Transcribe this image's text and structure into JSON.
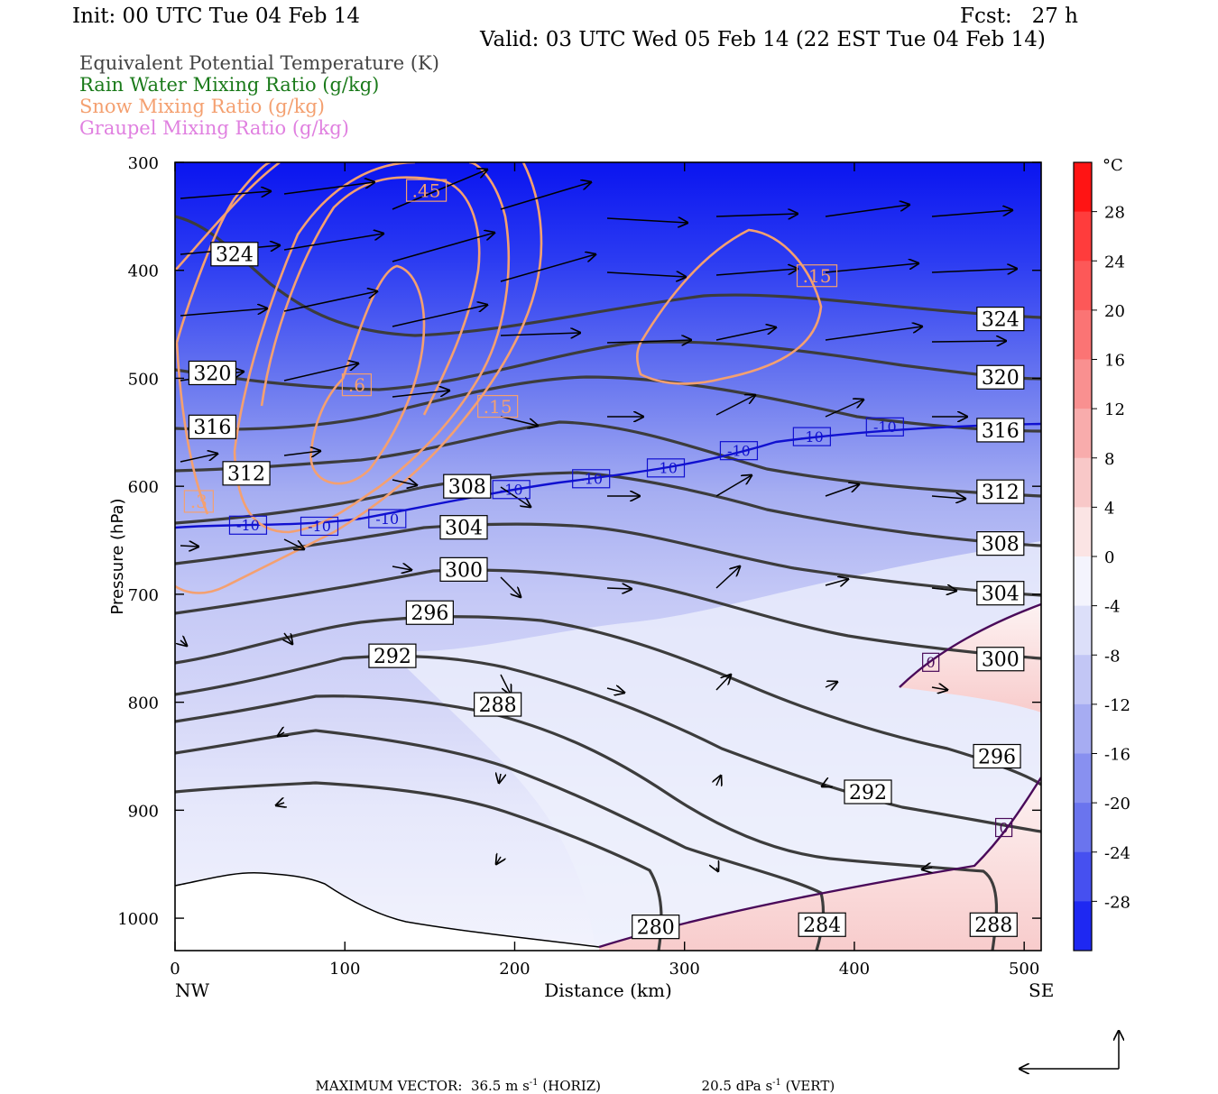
{
  "header": {
    "init": "Init: 00 UTC Tue 04 Feb 14",
    "fcst": "Fcst:   27 h",
    "valid": "Valid: 03 UTC Wed 05 Feb 14 (22 EST Tue 04 Feb 14)"
  },
  "fields": [
    {
      "label": "Equivalent Potential Temperature (K)",
      "color": "#444444"
    },
    {
      "label": "Rain Water Mixing Ratio (g/kg)",
      "color": "#1a7a1a"
    },
    {
      "label": "Snow Mixing Ratio (g/kg)",
      "color": "#f4a070"
    },
    {
      "label": "Graupel Mixing Ratio (g/kg)",
      "color": "#e080e0"
    }
  ],
  "footer": {
    "label": "MAXIMUM VECTOR:",
    "horiz": "36.5 m s",
    "horiz_unit": " (HORIZ)",
    "vert": "20.5 dPa s",
    "vert_unit": " (VERT)",
    "exp": "-1"
  },
  "chart_data": {
    "type": "contour-cross-section",
    "xlabel": "Distance (km)",
    "ylabel": "Pressure (hPa)",
    "xlim": [
      0,
      510
    ],
    "ylim": [
      1030,
      300
    ],
    "x_ticks": [
      0,
      100,
      200,
      300,
      400,
      500
    ],
    "y_ticks": [
      300,
      400,
      500,
      600,
      700,
      800,
      900,
      1000
    ],
    "x_end_labels": {
      "left": "NW",
      "right": "SE"
    },
    "colorbar": {
      "unit": "°C",
      "ticks": [
        28,
        24,
        20,
        16,
        12,
        8,
        4,
        0,
        -4,
        -8,
        -12,
        -16,
        -20,
        -24,
        -28
      ],
      "range": [
        -32,
        32
      ]
    },
    "theta_e_labels": [
      {
        "text": "324",
        "x": 35,
        "p": 385
      },
      {
        "text": "320",
        "x": 22,
        "p": 495
      },
      {
        "text": "316",
        "x": 22,
        "p": 545
      },
      {
        "text": "312",
        "x": 42,
        "p": 588
      },
      {
        "text": "308",
        "x": 172,
        "p": 600
      },
      {
        "text": "304",
        "x": 170,
        "p": 638
      },
      {
        "text": "300",
        "x": 170,
        "p": 677
      },
      {
        "text": "296",
        "x": 150,
        "p": 717
      },
      {
        "text": "292",
        "x": 128,
        "p": 757
      },
      {
        "text": "288",
        "x": 190,
        "p": 802
      },
      {
        "text": "280",
        "x": 283,
        "p": 1008
      },
      {
        "text": "284",
        "x": 381,
        "p": 1006
      },
      {
        "text": "288",
        "x": 482,
        "p": 1006
      },
      {
        "text": "324",
        "x": 486,
        "p": 445
      },
      {
        "text": "320",
        "x": 486,
        "p": 499
      },
      {
        "text": "316",
        "x": 486,
        "p": 548
      },
      {
        "text": "312",
        "x": 486,
        "p": 605
      },
      {
        "text": "308",
        "x": 486,
        "p": 653
      },
      {
        "text": "304",
        "x": 486,
        "p": 699
      },
      {
        "text": "300",
        "x": 486,
        "p": 760
      },
      {
        "text": "296",
        "x": 484,
        "p": 850
      },
      {
        "text": "292",
        "x": 408,
        "p": 883
      }
    ],
    "isotherm_labels": [
      {
        "text": "-10",
        "x": 43,
        "p": 636
      },
      {
        "text": "-10",
        "x": 85,
        "p": 637
      },
      {
        "text": "-10",
        "x": 125,
        "p": 630
      },
      {
        "text": "-10",
        "x": 198,
        "p": 603
      },
      {
        "text": "-10",
        "x": 245,
        "p": 593
      },
      {
        "text": "-10",
        "x": 289,
        "p": 583
      },
      {
        "text": "-10",
        "x": 332,
        "p": 567
      },
      {
        "text": "-10",
        "x": 375,
        "p": 554
      },
      {
        "text": "-10",
        "x": 418,
        "p": 545
      }
    ],
    "snow_labels": [
      {
        "text": ".45",
        "x": 148,
        "p": 326
      },
      {
        "text": ".15",
        "x": 378,
        "p": 405
      },
      {
        "text": ".6",
        "x": 107,
        "p": 506
      },
      {
        "text": ".15",
        "x": 190,
        "p": 526
      },
      {
        "text": ".3",
        "x": 14,
        "p": 614
      }
    ],
    "temp_zero_labels": [
      {
        "text": "0",
        "x": 445,
        "p": 763
      },
      {
        "text": "0",
        "x": 488,
        "p": 916
      }
    ]
  }
}
